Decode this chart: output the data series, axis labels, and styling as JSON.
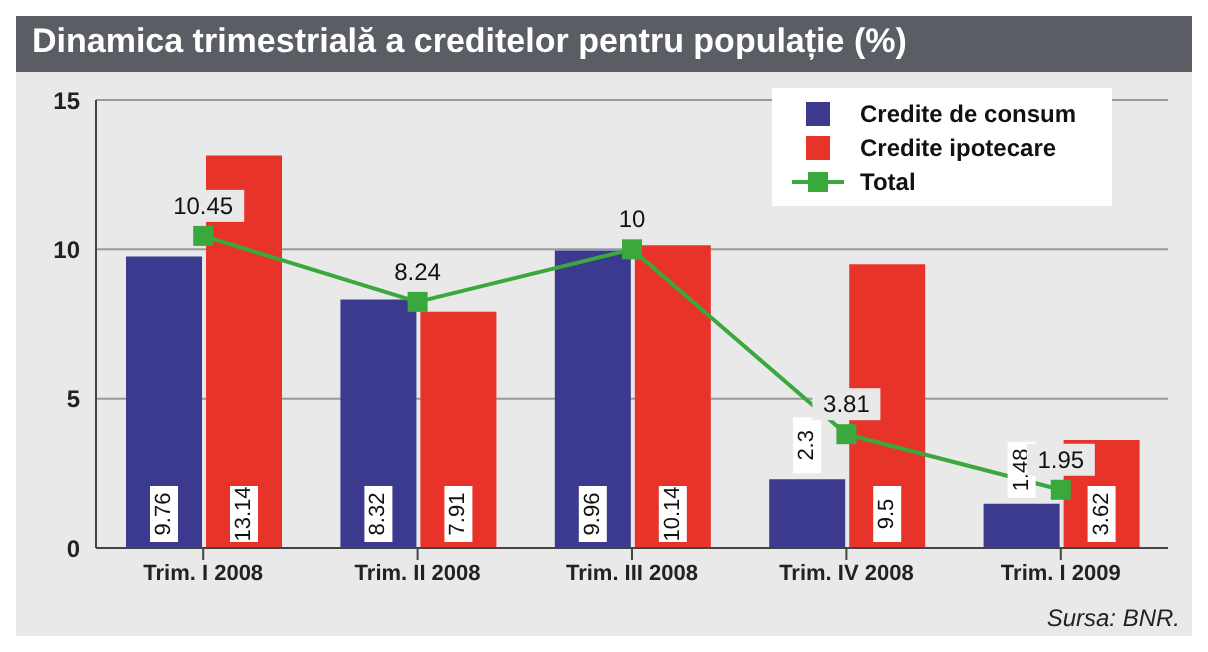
{
  "chart_data": {
    "type": "bar",
    "title": "Dinamica trimestrială a creditelor pentru populație (%)",
    "categories": [
      "Trim. I 2008",
      "Trim. II 2008",
      "Trim. III 2008",
      "Trim. IV 2008",
      "Trim. I 2009"
    ],
    "series": [
      {
        "name": "Credite de consum",
        "color": "#3b3a8e",
        "values": [
          9.76,
          8.32,
          9.96,
          2.3,
          1.48
        ]
      },
      {
        "name": "Credite ipotecare",
        "color": "#e8332b",
        "values": [
          13.14,
          7.91,
          10.14,
          9.5,
          3.62
        ]
      },
      {
        "name": "Total",
        "type": "line",
        "color": "#3aa83c",
        "values": [
          10.45,
          8.24,
          10,
          3.81,
          1.95
        ]
      }
    ],
    "ylim": [
      0,
      15
    ],
    "yticks": [
      0,
      5,
      10,
      15
    ],
    "grid": "y",
    "legend": "top right",
    "marker": "square",
    "data_labels": true,
    "annotations": [
      "Sursa: BNR."
    ]
  }
}
